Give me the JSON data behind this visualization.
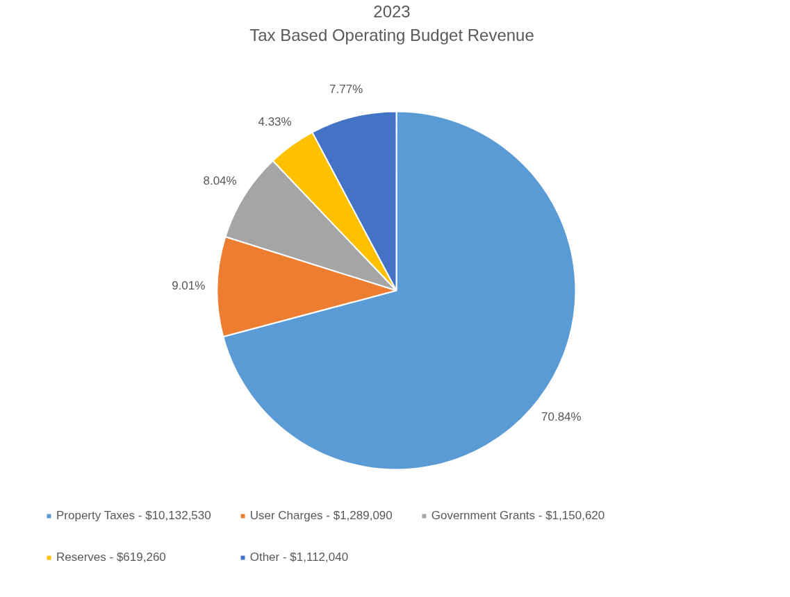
{
  "chart_data": {
    "type": "pie",
    "title": "2023",
    "subtitle": "Tax Based Operating Budget Revenue",
    "categories": [
      "Property Taxes - $10,132,530",
      "User Charges - $1,289,090",
      "Government Grants - $1,150,620",
      "Reserves - $619,260",
      "Other - $1,112,040"
    ],
    "values": [
      70.84,
      9.01,
      8.04,
      4.33,
      7.77
    ],
    "value_labels": [
      "70.84%",
      "9.01%",
      "8.04%",
      "4.33%",
      "7.77%"
    ],
    "colors": [
      "#5b9bd5",
      "#ed7d31",
      "#a5a5a5",
      "#ffc000",
      "#4472c4"
    ],
    "legend": "bottom"
  }
}
